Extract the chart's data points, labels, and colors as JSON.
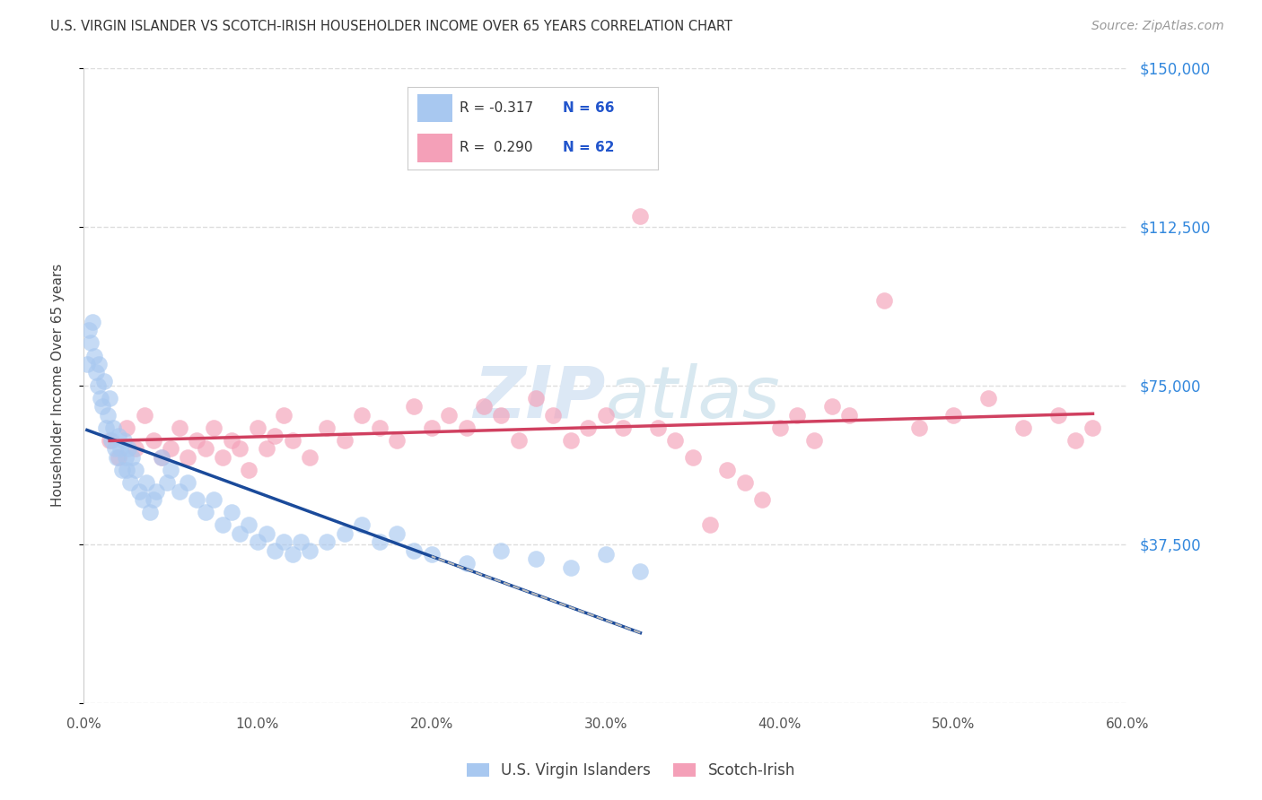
{
  "title": "U.S. VIRGIN ISLANDER VS SCOTCH-IRISH HOUSEHOLDER INCOME OVER 65 YEARS CORRELATION CHART",
  "source": "Source: ZipAtlas.com",
  "ylabel": "Householder Income Over 65 years",
  "xlabel_ticks": [
    "0.0%",
    "10.0%",
    "20.0%",
    "30.0%",
    "40.0%",
    "50.0%",
    "60.0%"
  ],
  "xlabel_vals": [
    0.0,
    10.0,
    20.0,
    30.0,
    40.0,
    50.0,
    60.0
  ],
  "ylim": [
    0,
    150000
  ],
  "xlim": [
    0.0,
    60.0
  ],
  "ytick_vals": [
    0,
    37500,
    75000,
    112500,
    150000
  ],
  "ytick_labels": [
    "",
    "$37,500",
    "$75,000",
    "$112,500",
    "$150,000"
  ],
  "legend_r_vi": "-0.317",
  "legend_n_vi": "66",
  "legend_r_si": "0.290",
  "legend_n_si": "62",
  "color_vi": "#a8c8f0",
  "color_si": "#f4a0b8",
  "color_vi_line": "#1a4a9a",
  "color_si_line": "#d04060",
  "color_dashed": "#bbbbbb",
  "background_color": "#ffffff",
  "grid_color": "#dddddd",
  "vi_x": [
    0.2,
    0.3,
    0.4,
    0.5,
    0.6,
    0.7,
    0.8,
    0.9,
    1.0,
    1.1,
    1.2,
    1.3,
    1.4,
    1.5,
    1.6,
    1.7,
    1.8,
    1.9,
    2.0,
    2.1,
    2.2,
    2.3,
    2.4,
    2.5,
    2.6,
    2.7,
    2.8,
    3.0,
    3.2,
    3.4,
    3.6,
    3.8,
    4.0,
    4.2,
    4.5,
    4.8,
    5.0,
    5.5,
    6.0,
    6.5,
    7.0,
    7.5,
    8.0,
    8.5,
    9.0,
    9.5,
    10.0,
    10.5,
    11.0,
    11.5,
    12.0,
    12.5,
    13.0,
    14.0,
    15.0,
    16.0,
    17.0,
    18.0,
    19.0,
    20.0,
    22.0,
    24.0,
    26.0,
    28.0,
    30.0,
    32.0
  ],
  "vi_y": [
    80000,
    88000,
    85000,
    90000,
    82000,
    78000,
    75000,
    80000,
    72000,
    70000,
    76000,
    65000,
    68000,
    72000,
    62000,
    65000,
    60000,
    58000,
    63000,
    60000,
    55000,
    62000,
    58000,
    55000,
    60000,
    52000,
    58000,
    55000,
    50000,
    48000,
    52000,
    45000,
    48000,
    50000,
    58000,
    52000,
    55000,
    50000,
    52000,
    48000,
    45000,
    48000,
    42000,
    45000,
    40000,
    42000,
    38000,
    40000,
    36000,
    38000,
    35000,
    38000,
    36000,
    38000,
    40000,
    42000,
    38000,
    40000,
    36000,
    35000,
    33000,
    36000,
    34000,
    32000,
    35000,
    31000
  ],
  "si_x": [
    1.5,
    2.0,
    2.5,
    3.0,
    3.5,
    4.0,
    4.5,
    5.0,
    5.5,
    6.0,
    6.5,
    7.0,
    7.5,
    8.0,
    8.5,
    9.0,
    9.5,
    10.0,
    10.5,
    11.0,
    11.5,
    12.0,
    13.0,
    14.0,
    15.0,
    16.0,
    17.0,
    18.0,
    19.0,
    20.0,
    21.0,
    22.0,
    23.0,
    24.0,
    25.0,
    26.0,
    27.0,
    28.0,
    29.0,
    30.0,
    31.0,
    32.0,
    33.0,
    34.0,
    35.0,
    36.0,
    37.0,
    38.0,
    39.0,
    40.0,
    41.0,
    42.0,
    43.0,
    44.0,
    46.0,
    48.0,
    50.0,
    52.0,
    54.0,
    56.0,
    57.0,
    58.0
  ],
  "si_y": [
    62000,
    58000,
    65000,
    60000,
    68000,
    62000,
    58000,
    60000,
    65000,
    58000,
    62000,
    60000,
    65000,
    58000,
    62000,
    60000,
    55000,
    65000,
    60000,
    63000,
    68000,
    62000,
    58000,
    65000,
    62000,
    68000,
    65000,
    62000,
    70000,
    65000,
    68000,
    65000,
    70000,
    68000,
    62000,
    72000,
    68000,
    62000,
    65000,
    68000,
    65000,
    115000,
    65000,
    62000,
    58000,
    42000,
    55000,
    52000,
    48000,
    65000,
    68000,
    62000,
    70000,
    68000,
    95000,
    65000,
    68000,
    72000,
    65000,
    68000,
    62000,
    65000
  ]
}
